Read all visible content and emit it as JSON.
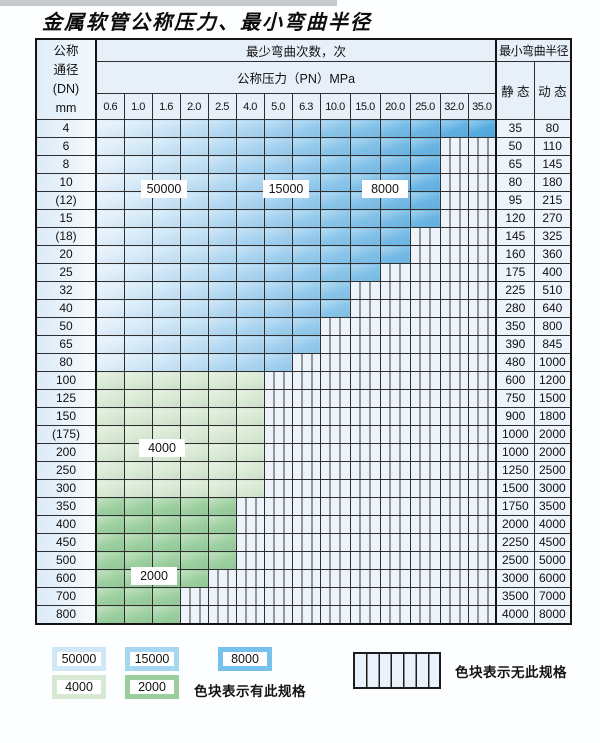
{
  "title": "金属软管公称压力、最小弯曲半径",
  "table": {
    "corner": {
      "lines": [
        "公称",
        "通径",
        "(DN)",
        "mm"
      ]
    },
    "bend_header": "最少弯曲次数，次",
    "pressure_header": "公称压力（PN）MPa",
    "radius_header": "最小弯曲半径",
    "static_header": "静 态",
    "dynamic_header": "动 态",
    "pressure_columns": [
      "0.6",
      "1.0",
      "1.6",
      "2.0",
      "2.5",
      "4.0",
      "5.0",
      "6.3",
      "10.0",
      "15.0",
      "20.0",
      "25.0",
      "32.0",
      "35.0"
    ],
    "cycle_bands": {
      "50000": [
        "0.6",
        "1.0",
        "1.6",
        "2.0",
        "2.5"
      ],
      "15000": [
        "4.0",
        "5.0",
        "6.3"
      ],
      "8000": [
        "10.0",
        "15.0",
        "20.0",
        "25.0",
        "32.0",
        "35.0"
      ],
      "4000": "DN100-300",
      "2000": "DN350-800"
    },
    "overlay_labels": [
      {
        "text": "50000"
      },
      {
        "text": "15000"
      },
      {
        "text": "8000"
      },
      {
        "text": "4000"
      },
      {
        "text": "2000"
      }
    ],
    "rows": [
      {
        "dn": "4",
        "group": "blue",
        "colored": 14,
        "max_pressure": "35.0",
        "static": "35",
        "dynamic": "80"
      },
      {
        "dn": "6",
        "group": "blue",
        "colored": 12,
        "max_pressure": "25.0",
        "static": "50",
        "dynamic": "110"
      },
      {
        "dn": "8",
        "group": "blue",
        "colored": 12,
        "max_pressure": "25.0",
        "static": "65",
        "dynamic": "145"
      },
      {
        "dn": "10",
        "group": "blue",
        "colored": 12,
        "max_pressure": "25.0",
        "static": "80",
        "dynamic": "180"
      },
      {
        "dn": "(12)",
        "group": "blue",
        "colored": 12,
        "max_pressure": "25.0",
        "static": "95",
        "dynamic": "215"
      },
      {
        "dn": "15",
        "group": "blue",
        "colored": 12,
        "max_pressure": "25.0",
        "static": "120",
        "dynamic": "270"
      },
      {
        "dn": "(18)",
        "group": "blue",
        "colored": 11,
        "max_pressure": "20.0",
        "static": "145",
        "dynamic": "325"
      },
      {
        "dn": "20",
        "group": "blue",
        "colored": 11,
        "max_pressure": "20.0",
        "static": "160",
        "dynamic": "360"
      },
      {
        "dn": "25",
        "group": "blue",
        "colored": 10,
        "max_pressure": "15.0",
        "static": "175",
        "dynamic": "400"
      },
      {
        "dn": "32",
        "group": "blue",
        "colored": 9,
        "max_pressure": "10.0",
        "static": "225",
        "dynamic": "510"
      },
      {
        "dn": "40",
        "group": "blue",
        "colored": 9,
        "max_pressure": "10.0",
        "static": "280",
        "dynamic": "640"
      },
      {
        "dn": "50",
        "group": "blue",
        "colored": 8,
        "max_pressure": "6.3",
        "static": "350",
        "dynamic": "800"
      },
      {
        "dn": "65",
        "group": "blue",
        "colored": 8,
        "max_pressure": "6.3",
        "static": "390",
        "dynamic": "845"
      },
      {
        "dn": "80",
        "group": "blue",
        "colored": 7,
        "max_pressure": "5.0",
        "static": "480",
        "dynamic": "1000"
      },
      {
        "dn": "100",
        "group": "green4000",
        "colored": 6,
        "max_pressure": "4.0",
        "static": "600",
        "dynamic": "1200"
      },
      {
        "dn": "125",
        "group": "green4000",
        "colored": 6,
        "max_pressure": "4.0",
        "static": "750",
        "dynamic": "1500"
      },
      {
        "dn": "150",
        "group": "green4000",
        "colored": 6,
        "max_pressure": "4.0",
        "static": "900",
        "dynamic": "1800"
      },
      {
        "dn": "(175)",
        "group": "green4000",
        "colored": 6,
        "max_pressure": "4.0",
        "static": "1000",
        "dynamic": "2000"
      },
      {
        "dn": "200",
        "group": "green4000",
        "colored": 6,
        "max_pressure": "4.0",
        "static": "1000",
        "dynamic": "2000"
      },
      {
        "dn": "250",
        "group": "green4000",
        "colored": 6,
        "max_pressure": "4.0",
        "static": "1250",
        "dynamic": "2500"
      },
      {
        "dn": "300",
        "group": "green4000",
        "colored": 6,
        "max_pressure": "4.0",
        "static": "1500",
        "dynamic": "3000"
      },
      {
        "dn": "350",
        "group": "green2000",
        "colored": 5,
        "max_pressure": "2.5",
        "static": "1750",
        "dynamic": "3500"
      },
      {
        "dn": "400",
        "group": "green2000",
        "colored": 5,
        "max_pressure": "2.5",
        "static": "2000",
        "dynamic": "4000"
      },
      {
        "dn": "450",
        "group": "green2000",
        "colored": 5,
        "max_pressure": "2.5",
        "static": "2250",
        "dynamic": "4500"
      },
      {
        "dn": "500",
        "group": "green2000",
        "colored": 5,
        "max_pressure": "2.5",
        "static": "2500",
        "dynamic": "5000"
      },
      {
        "dn": "600",
        "group": "green2000",
        "colored": 4,
        "max_pressure": "2.0",
        "static": "3000",
        "dynamic": "6000"
      },
      {
        "dn": "700",
        "group": "green2000",
        "colored": 3,
        "max_pressure": "1.6",
        "static": "3500",
        "dynamic": "7000"
      },
      {
        "dn": "800",
        "group": "green2000",
        "colored": 3,
        "max_pressure": "1.6",
        "static": "4000",
        "dynamic": "8000"
      }
    ]
  },
  "legend": {
    "items": [
      {
        "label": "50000",
        "color": "#d0e7f8"
      },
      {
        "label": "15000",
        "color": "#a6d6f2"
      },
      {
        "label": "8000",
        "color": "#77c2ec"
      },
      {
        "label": "4000",
        "color": "#d8e9d3"
      },
      {
        "label": "2000",
        "color": "#9bce9d"
      }
    ],
    "has_spec_text": "色块表示有此规格",
    "no_spec_text": "色块表示无此规格"
  },
  "colors": {
    "blue_light": "#dfeefa",
    "blue_dark": "#54abe0",
    "green_4000": "#d8e9d3",
    "green_2000": "#9ccf9e",
    "nospec_bg": "#edf3fa"
  }
}
